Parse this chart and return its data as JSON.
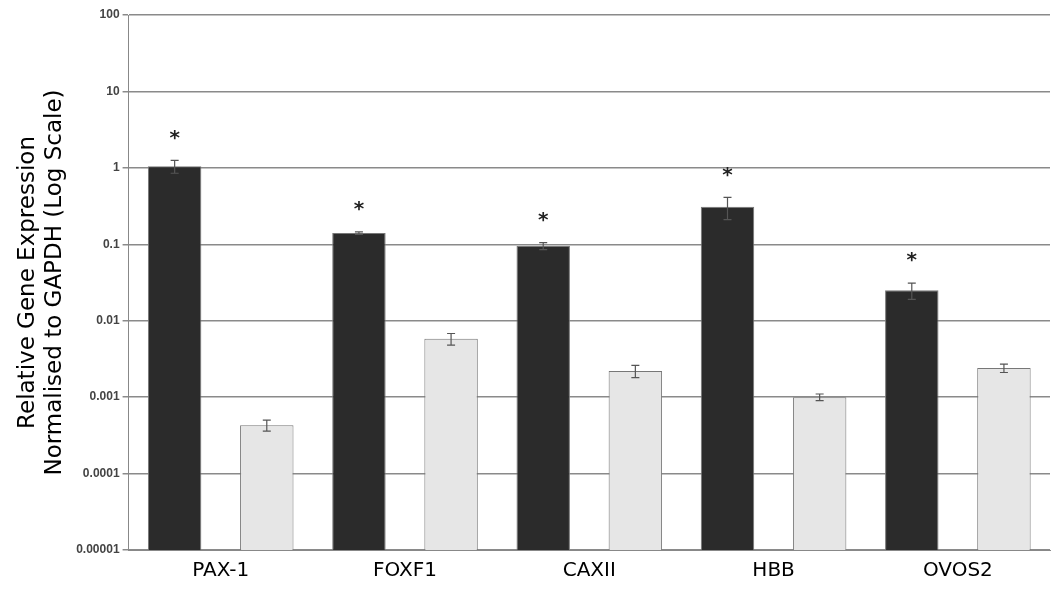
{
  "chart_data": {
    "type": "bar",
    "ylabel": "Relative Gene Expression\nNormalised to GAPDH (Log Scale)",
    "categories": [
      "PAX-1",
      "FOXF1",
      "CAXII",
      "HBB",
      "OVOS2"
    ],
    "series": [
      {
        "color": "#2b2b2b",
        "values": [
          1.05,
          0.14,
          0.095,
          0.31,
          0.025
        ],
        "errors": [
          0.2,
          0.005,
          0.01,
          0.1,
          0.006
        ]
      },
      {
        "color": "#e6e6e6",
        "values": [
          0.00043,
          0.0058,
          0.0022,
          0.001,
          0.0024
        ],
        "errors": [
          7e-05,
          0.001,
          0.0004,
          0.0001,
          0.0003
        ]
      }
    ],
    "log": "y",
    "ylim": [
      1e-05,
      100
    ],
    "yticks": [
      {
        "value": 1e-05,
        "label": "0.00001"
      },
      0.0001,
      0.001,
      0.01,
      0.1,
      1,
      10,
      100
    ],
    "grid": "y",
    "annotations": [
      "*",
      "*",
      "*",
      "*",
      "*"
    ]
  }
}
